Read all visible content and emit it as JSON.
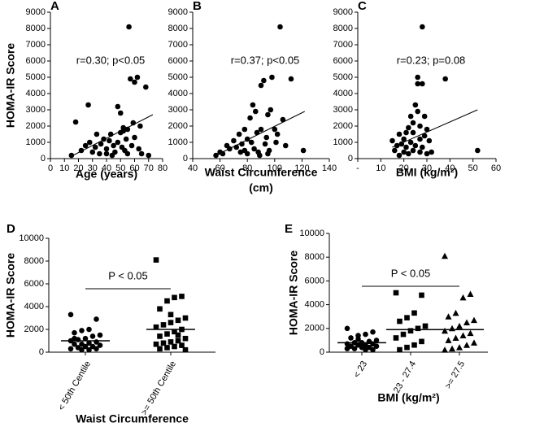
{
  "chart_data": [
    {
      "type": "scatter",
      "label": "A",
      "ylabel": "HOMA-IR  Score",
      "xlabel": [
        "Age (years)"
      ],
      "annotation": "r=0.30; p<0.05",
      "xlim": [
        0,
        80
      ],
      "xticks": [
        0,
        10,
        20,
        30,
        40,
        50,
        60,
        70,
        80
      ],
      "ylim": [
        0,
        9000
      ],
      "yticks": [
        0,
        1000,
        2000,
        3000,
        4000,
        5000,
        6000,
        7000,
        8000,
        9000
      ],
      "x": [
        15,
        18,
        22,
        25,
        27,
        28,
        30,
        32,
        33,
        35,
        36,
        38,
        40,
        40,
        42,
        43,
        45,
        46,
        48,
        48,
        50,
        50,
        51,
        52,
        53,
        54,
        55,
        55,
        56,
        57,
        58,
        59,
        60,
        60,
        62,
        63,
        64,
        65,
        68,
        70,
        52,
        44
      ],
      "y": [
        200,
        2250,
        500,
        800,
        3300,
        1000,
        400,
        700,
        1500,
        300,
        900,
        1200,
        600,
        300,
        1100,
        1500,
        800,
        400,
        3200,
        1000,
        2800,
        1600,
        700,
        1900,
        500,
        1200,
        1800,
        300,
        8100,
        4900,
        800,
        2200,
        4700,
        1300,
        5000,
        600,
        2000,
        300,
        4400,
        200,
        1700,
        200
      ],
      "trend_line": {
        "x": [
          15,
          73
        ],
        "y": [
          150,
          2700
        ]
      },
      "color": "#000000"
    },
    {
      "type": "scatter",
      "label": "B",
      "xlabel": [
        "Waist Circumference",
        "(cm)"
      ],
      "annotation": "r=0.37; p<0.05",
      "xlim": [
        40,
        140
      ],
      "xticks": [
        40,
        60,
        80,
        100,
        120,
        140
      ],
      "ylim": [
        0,
        9000
      ],
      "yticks": [
        0,
        1000,
        2000,
        3000,
        4000,
        5000,
        6000,
        7000,
        8000,
        9000
      ],
      "x": [
        57,
        60,
        62,
        65,
        67,
        70,
        72,
        74,
        75,
        76,
        78,
        80,
        80,
        82,
        83,
        84,
        85,
        86,
        87,
        88,
        89,
        90,
        90,
        92,
        93,
        94,
        95,
        96,
        97,
        98,
        100,
        101,
        102,
        104,
        106,
        108,
        112,
        121,
        95,
        78
      ],
      "y": [
        200,
        400,
        300,
        800,
        600,
        1100,
        700,
        1500,
        400,
        900,
        1800,
        1200,
        300,
        2500,
        1000,
        3300,
        600,
        2900,
        1600,
        400,
        200,
        1800,
        4500,
        4800,
        900,
        1300,
        2700,
        500,
        3000,
        5000,
        1800,
        1000,
        1500,
        8100,
        2400,
        800,
        4900,
        500,
        300,
        500
      ],
      "trend_line": {
        "x": [
          57,
          122
        ],
        "y": [
          200,
          2900
        ]
      },
      "color": "#000000"
    },
    {
      "type": "scatter",
      "label": "C",
      "xlabel": [
        "BMI (kg/m²)"
      ],
      "annotation": "r=0.23; p=0.08",
      "xlim": [
        0,
        60
      ],
      "xticks": [
        {
          "value": 0,
          "label": "-"
        },
        10,
        20,
        30,
        40,
        50,
        60
      ],
      "ylim": [
        0,
        9000
      ],
      "yticks": [
        0,
        1000,
        2000,
        3000,
        4000,
        5000,
        6000,
        7000,
        8000,
        9000
      ],
      "x": [
        15,
        16,
        17,
        18,
        18,
        19,
        20,
        20,
        21,
        22,
        22,
        23,
        23,
        24,
        24,
        25,
        25,
        26,
        26,
        26,
        27,
        27,
        27,
        28,
        28,
        28,
        29,
        29,
        30,
        30,
        31,
        32,
        38,
        52,
        21,
        24
      ],
      "y": [
        1100,
        500,
        800,
        200,
        1500,
        900,
        1200,
        400,
        700,
        1900,
        300,
        1000,
        2600,
        1600,
        500,
        3300,
        800,
        2900,
        4600,
        5000,
        1200,
        400,
        2000,
        8100,
        4600,
        700,
        1400,
        2600,
        1800,
        300,
        1100,
        400,
        4900,
        500,
        1600,
        2200
      ],
      "trend_line": {
        "x": [
          15,
          52
        ],
        "y": [
          700,
          3000
        ]
      },
      "color": "#000000"
    },
    {
      "type": "dot",
      "label": "D",
      "ylabel": "HOMA-IR Score",
      "xlabel": [
        "Waist Circumference"
      ],
      "annotation": "P < 0.05",
      "categories": [
        "< 50th Centile",
        ">= 50th Centile"
      ],
      "markers": [
        "circle",
        "square"
      ],
      "ylim": [
        0,
        10000
      ],
      "yticks": [
        0,
        2000,
        4000,
        6000,
        8000,
        10000
      ],
      "values": [
        [
          3300,
          2900,
          2000,
          1900,
          1700,
          1500,
          1400,
          1200,
          1100,
          1000,
          900,
          800,
          700,
          700,
          600,
          500,
          500,
          400,
          300,
          300,
          200,
          200,
          1200
        ],
        [
          8100,
          4900,
          4800,
          4500,
          3800,
          3000,
          2800,
          2600,
          2400,
          2200,
          2000,
          1800,
          1600,
          1400,
          1200,
          1000,
          900,
          800,
          700,
          600,
          500,
          400,
          300,
          200,
          1500,
          3300
        ]
      ],
      "means": [
        1000,
        2000
      ],
      "color": "#000000"
    },
    {
      "type": "dot",
      "label": "E",
      "ylabel": "HOMA-IR Score",
      "xlabel": [
        "BMI (kg/m²)"
      ],
      "annotation": "P < 0.05",
      "categories": [
        "< 23",
        "23 - 27.4",
        ">= 27.5"
      ],
      "markers": [
        "circle",
        "square",
        "triangle"
      ],
      "ylim": [
        0,
        10000
      ],
      "yticks": [
        0,
        2000,
        4000,
        6000,
        8000,
        10000
      ],
      "values": [
        [
          2000,
          1700,
          1500,
          1400,
          1200,
          1000,
          900,
          800,
          800,
          700,
          700,
          600,
          600,
          500,
          500,
          400,
          400,
          300,
          300,
          200,
          200,
          1100
        ],
        [
          5000,
          4800,
          3300,
          2900,
          2600,
          2200,
          2000,
          1800,
          1500,
          1200,
          900,
          600,
          400,
          200
        ],
        [
          8100,
          4900,
          4600,
          3300,
          3000,
          2700,
          2500,
          2200,
          2000,
          1800,
          1600,
          1400,
          1200,
          1000,
          800,
          600,
          400,
          300,
          200
        ]
      ],
      "means": [
        800,
        1900,
        1900
      ],
      "color": "#000000"
    }
  ]
}
